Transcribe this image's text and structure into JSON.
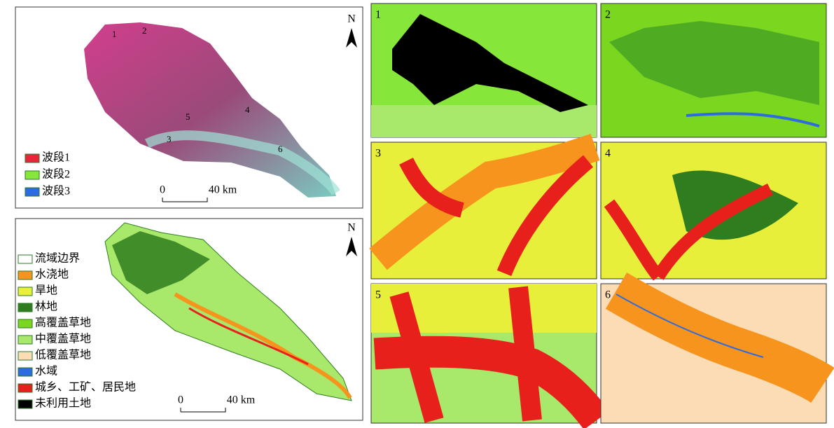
{
  "top_map": {
    "north": "N",
    "sites": [
      "1",
      "2",
      "3",
      "4",
      "5",
      "6"
    ],
    "legend": [
      {
        "label": "波段1",
        "color": "#e8253a"
      },
      {
        "label": "波段2",
        "color": "#86e63a"
      },
      {
        "label": "波段3",
        "color": "#2c6be0"
      }
    ],
    "scale": {
      "zero": "0",
      "distance": "40 km"
    }
  },
  "bottom_map": {
    "north": "N",
    "legend": [
      {
        "label": "流域边界",
        "color": "#ffffff"
      },
      {
        "label": "水浇地",
        "color": "#f7941d"
      },
      {
        "label": "旱地",
        "color": "#e8ef3a"
      },
      {
        "label": "林地",
        "color": "#2f7d1e"
      },
      {
        "label": "高覆盖草地",
        "color": "#7ad61f"
      },
      {
        "label": "中覆盖草地",
        "color": "#a8e86a"
      },
      {
        "label": "低覆盖草地",
        "color": "#fbdcb4"
      },
      {
        "label": "水域",
        "color": "#2c6be0"
      },
      {
        "label": "城乡、工矿、居民地",
        "color": "#e8201c"
      },
      {
        "label": "未利用土地",
        "color": "#000000"
      }
    ],
    "scale": {
      "zero": "0",
      "distance": "40 km"
    }
  },
  "panels": [
    {
      "label": "1"
    },
    {
      "label": "2"
    },
    {
      "label": "3"
    },
    {
      "label": "4"
    },
    {
      "label": "5"
    },
    {
      "label": "6"
    }
  ]
}
